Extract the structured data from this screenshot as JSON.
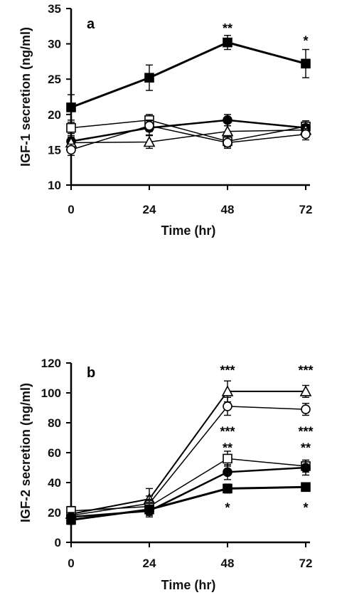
{
  "chart_data": [
    {
      "panel": "a",
      "type": "line",
      "ylabel": "IGF-1 secretion (ng/ml)",
      "xlabel": "Time (hr)",
      "x": [
        0,
        24,
        48,
        72
      ],
      "x_ticks": [
        "0",
        "24",
        "48",
        "72"
      ],
      "ylim": [
        10,
        35
      ],
      "y_ticks": [
        "10",
        "15",
        "20",
        "25",
        "30",
        "35"
      ],
      "grid": false,
      "series": [
        {
          "marker": "filled-square",
          "values": [
            21,
            25.2,
            30.2,
            27.2
          ],
          "errors": [
            1.8,
            1.8,
            1.0,
            2.0
          ],
          "line_width": 3
        },
        {
          "marker": "open-square",
          "values": [
            18.1,
            19.2,
            16.2,
            18.3
          ],
          "errors": [
            0.8,
            0.8,
            0.8,
            0.8
          ],
          "line_width": 1.5
        },
        {
          "marker": "filled-circle",
          "values": [
            16.2,
            18.1,
            19.2,
            18.1
          ],
          "errors": [
            0.8,
            1.0,
            0.8,
            0.8
          ],
          "line_width": 2.5
        },
        {
          "marker": "open-triangle",
          "values": [
            16.0,
            16.1,
            17.6,
            17.8
          ],
          "errors": [
            0.8,
            0.9,
            0.8,
            0.8
          ],
          "line_width": 1.5
        },
        {
          "marker": "open-circle",
          "values": [
            15.0,
            18.4,
            16.0,
            17.2
          ],
          "errors": [
            0.8,
            0.8,
            0.8,
            0.8
          ],
          "line_width": 1.5
        }
      ],
      "significance": [
        {
          "x": 48,
          "y": 32.2,
          "label": "**"
        },
        {
          "x": 72,
          "y": 30.4,
          "label": "*"
        }
      ]
    },
    {
      "panel": "b",
      "type": "line",
      "ylabel": "IGF-2 secretion (ng/ml)",
      "xlabel": "Time (hr)",
      "x": [
        0,
        24,
        48,
        72
      ],
      "x_ticks": [
        "0",
        "24",
        "48",
        "72"
      ],
      "ylim": [
        0,
        120
      ],
      "y_ticks": [
        "0",
        "20",
        "40",
        "60",
        "80",
        "100",
        "120"
      ],
      "grid": false,
      "series": [
        {
          "marker": "open-triangle",
          "values": [
            19,
            29,
            101,
            101
          ],
          "errors": [
            3,
            7,
            7,
            4
          ],
          "line_width": 2
        },
        {
          "marker": "open-circle",
          "values": [
            18,
            26,
            91,
            89
          ],
          "errors": [
            3,
            5,
            6,
            4
          ],
          "line_width": 1.5
        },
        {
          "marker": "open-square",
          "values": [
            21,
            24,
            56,
            51
          ],
          "errors": [
            3,
            4,
            5,
            4
          ],
          "line_width": 1.5
        },
        {
          "marker": "filled-circle",
          "values": [
            17,
            21,
            47,
            50
          ],
          "errors": [
            3,
            4,
            5,
            5
          ],
          "line_width": 2.5
        },
        {
          "marker": "filled-square",
          "values": [
            15,
            22,
            36,
            37
          ],
          "errors": [
            3,
            4,
            3,
            2
          ],
          "line_width": 3
        }
      ],
      "significance": [
        {
          "x": 48,
          "y": 115,
          "label": "***"
        },
        {
          "x": 72,
          "y": 115,
          "label": "***"
        },
        {
          "x": 48,
          "y": 74,
          "label": "***"
        },
        {
          "x": 72,
          "y": 74,
          "label": "***"
        },
        {
          "x": 48,
          "y": 63,
          "label": "**"
        },
        {
          "x": 72,
          "y": 63,
          "label": "**"
        },
        {
          "x": 48,
          "y": 23,
          "label": "*"
        },
        {
          "x": 72,
          "y": 23,
          "label": "*"
        }
      ]
    }
  ]
}
